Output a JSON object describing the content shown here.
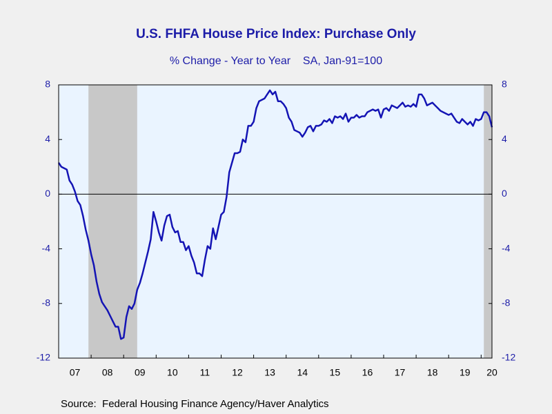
{
  "chart_data": {
    "type": "line",
    "title": "U.S. FHFA House Price Index: Purchase Only",
    "subtitle": "% Change - Year to Year    SA, Jan-91=100",
    "source": "Source:  Federal Housing Finance Agency/Haver Analytics",
    "color": "#1414b4",
    "x": [
      "2007-01",
      "2007-02",
      "2007-03",
      "2007-04",
      "2007-05",
      "2007-06",
      "2007-07",
      "2007-08",
      "2007-09",
      "2007-10",
      "2007-11",
      "2007-12",
      "2008-01",
      "2008-02",
      "2008-03",
      "2008-04",
      "2008-05",
      "2008-06",
      "2008-07",
      "2008-08",
      "2008-09",
      "2008-10",
      "2008-11",
      "2008-12",
      "2009-01",
      "2009-02",
      "2009-03",
      "2009-04",
      "2009-05",
      "2009-06",
      "2009-07",
      "2009-08",
      "2009-09",
      "2009-10",
      "2009-11",
      "2009-12",
      "2010-01",
      "2010-02",
      "2010-03",
      "2010-04",
      "2010-05",
      "2010-06",
      "2010-07",
      "2010-08",
      "2010-09",
      "2010-10",
      "2010-11",
      "2010-12",
      "2011-01",
      "2011-02",
      "2011-03",
      "2011-04",
      "2011-05",
      "2011-06",
      "2011-07",
      "2011-08",
      "2011-09",
      "2011-10",
      "2011-11",
      "2011-12",
      "2012-01",
      "2012-02",
      "2012-03",
      "2012-04",
      "2012-05",
      "2012-06",
      "2012-07",
      "2012-08",
      "2012-09",
      "2012-10",
      "2012-11",
      "2012-12",
      "2013-01",
      "2013-02",
      "2013-03",
      "2013-04",
      "2013-05",
      "2013-06",
      "2013-07",
      "2013-08",
      "2013-09",
      "2013-10",
      "2013-11",
      "2013-12",
      "2014-01",
      "2014-02",
      "2014-03",
      "2014-04",
      "2014-05",
      "2014-06",
      "2014-07",
      "2014-08",
      "2014-09",
      "2014-10",
      "2014-11",
      "2014-12",
      "2015-01",
      "2015-02",
      "2015-03",
      "2015-04",
      "2015-05",
      "2015-06",
      "2015-07",
      "2015-08",
      "2015-09",
      "2015-10",
      "2015-11",
      "2015-12",
      "2016-01",
      "2016-02",
      "2016-03",
      "2016-04",
      "2016-05",
      "2016-06",
      "2016-07",
      "2016-08",
      "2016-09",
      "2016-10",
      "2016-11",
      "2016-12",
      "2017-01",
      "2017-02",
      "2017-03",
      "2017-04",
      "2017-05",
      "2017-06",
      "2017-07",
      "2017-08",
      "2017-09",
      "2017-10",
      "2017-11",
      "2017-12",
      "2018-01",
      "2018-02",
      "2018-03",
      "2018-04",
      "2018-05",
      "2018-06",
      "2018-07",
      "2018-08",
      "2018-09",
      "2018-10",
      "2018-11",
      "2018-12",
      "2019-01",
      "2019-02",
      "2019-03",
      "2019-04",
      "2019-05",
      "2019-06",
      "2019-07",
      "2019-08",
      "2019-09",
      "2019-10",
      "2019-11",
      "2019-12",
      "2020-01",
      "2020-02",
      "2020-03",
      "2020-04",
      "2020-05"
    ],
    "values": [
      2.3,
      2.0,
      1.9,
      1.8,
      1.0,
      0.7,
      0.2,
      -0.5,
      -0.8,
      -1.6,
      -2.6,
      -3.4,
      -4.4,
      -5.2,
      -6.4,
      -7.3,
      -7.9,
      -8.2,
      -8.5,
      -8.9,
      -9.3,
      -9.7,
      -9.7,
      -10.6,
      -10.5,
      -9.0,
      -8.2,
      -8.4,
      -8.0,
      -7.0,
      -6.5,
      -5.8,
      -5.0,
      -4.2,
      -3.3,
      -1.3,
      -2.0,
      -2.8,
      -3.4,
      -2.3,
      -1.6,
      -1.5,
      -2.4,
      -2.8,
      -2.7,
      -3.5,
      -3.5,
      -4.1,
      -3.8,
      -4.5,
      -5.0,
      -5.8,
      -5.8,
      -6.0,
      -4.8,
      -3.8,
      -4.0,
      -2.5,
      -3.3,
      -2.4,
      -1.5,
      -1.3,
      -0.2,
      1.6,
      2.3,
      3.0,
      3.0,
      3.1,
      4.0,
      3.8,
      5.0,
      5.0,
      5.3,
      6.3,
      6.8,
      6.9,
      7.0,
      7.3,
      7.6,
      7.3,
      7.5,
      6.8,
      6.8,
      6.6,
      6.3,
      5.6,
      5.3,
      4.7,
      4.6,
      4.5,
      4.2,
      4.5,
      4.9,
      5.0,
      4.6,
      5.0,
      5.0,
      5.1,
      5.4,
      5.3,
      5.5,
      5.2,
      5.7,
      5.6,
      5.7,
      5.5,
      5.9,
      5.3,
      5.6,
      5.6,
      5.8,
      5.6,
      5.7,
      5.7,
      6.0,
      6.1,
      6.2,
      6.1,
      6.2,
      5.6,
      6.2,
      6.3,
      6.1,
      6.5,
      6.4,
      6.3,
      6.5,
      6.7,
      6.4,
      6.5,
      6.4,
      6.6,
      6.4,
      7.3,
      7.3,
      7.0,
      6.5,
      6.6,
      6.7,
      6.5,
      6.3,
      6.1,
      6.0,
      5.9,
      5.8,
      5.9,
      5.6,
      5.3,
      5.2,
      5.5,
      5.3,
      5.1,
      5.3,
      5.0,
      5.5,
      5.4,
      5.5,
      6.0,
      6.0,
      5.7,
      4.9
    ],
    "xlim": [
      "2007-01",
      "2020-05"
    ],
    "xticks": [
      {
        "value": "2007",
        "label": "07"
      },
      {
        "value": "2008",
        "label": "08"
      },
      {
        "value": "2009",
        "label": "09"
      },
      {
        "value": "2010",
        "label": "10"
      },
      {
        "value": "2011",
        "label": "11"
      },
      {
        "value": "2012",
        "label": "12"
      },
      {
        "value": "2013",
        "label": "13"
      },
      {
        "value": "2014",
        "label": "14"
      },
      {
        "value": "2015",
        "label": "15"
      },
      {
        "value": "2016",
        "label": "16"
      },
      {
        "value": "2017",
        "label": "17"
      },
      {
        "value": "2018",
        "label": "18"
      },
      {
        "value": "2019",
        "label": "19"
      },
      {
        "value": "2020",
        "label": "20"
      }
    ],
    "ylim": [
      -12,
      8
    ],
    "yticks": [
      -12,
      -8,
      -4,
      0,
      4,
      8
    ],
    "y2lim": [
      -12,
      8
    ],
    "y2ticks": [
      -12,
      -8,
      -4,
      0,
      4,
      8
    ],
    "shaded_periods": [
      [
        "2007-12",
        "2009-06"
      ],
      [
        "2020-02",
        "2020-05"
      ]
    ],
    "zero_line": true
  }
}
